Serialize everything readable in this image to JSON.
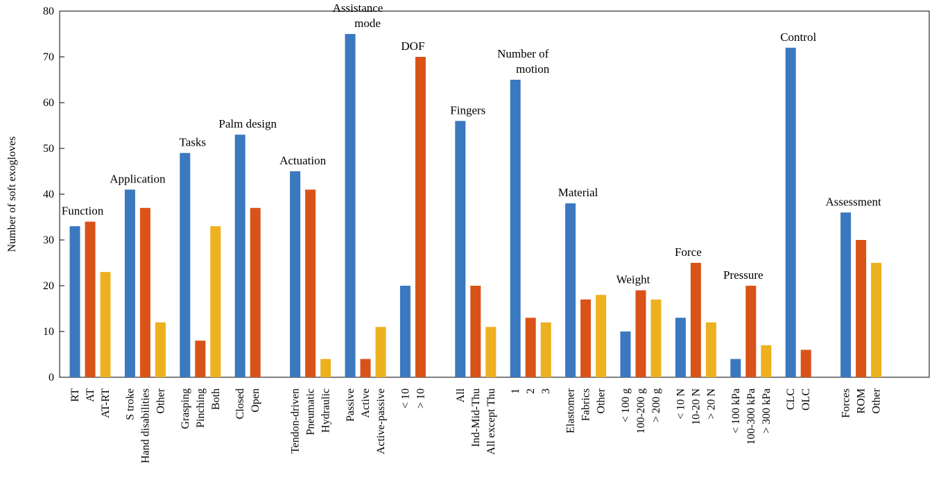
{
  "chart_data": {
    "type": "bar",
    "ylabel": "Number of soft exogloves",
    "ylim": [
      0,
      80
    ],
    "yticks": [
      0,
      10,
      20,
      30,
      40,
      50,
      60,
      70,
      80
    ],
    "colors": [
      "#3a78bf",
      "#d95319",
      "#edb120"
    ],
    "grid": false,
    "groups": [
      {
        "label": "Function",
        "bars": [
          {
            "cat": "RT",
            "value": 33
          },
          {
            "cat": "AT",
            "value": 34
          },
          {
            "cat": "AT-RT",
            "value": 23
          }
        ]
      },
      {
        "label": "Application",
        "bars": [
          {
            "cat": "S troke",
            "value": 41
          },
          {
            "cat": "Hand disabilities",
            "value": 37
          },
          {
            "cat": "Other",
            "value": 12
          }
        ]
      },
      {
        "label": "Tasks",
        "bars": [
          {
            "cat": "Grasping",
            "value": 49
          },
          {
            "cat": "Pinching",
            "value": 8
          },
          {
            "cat": "Both",
            "value": 33
          }
        ]
      },
      {
        "label": "Palm design",
        "bars": [
          {
            "cat": "Closed",
            "value": 53
          },
          {
            "cat": "Open",
            "value": 37
          }
        ]
      },
      {
        "label": "Actuation",
        "bars": [
          {
            "cat": "Tendon-driven",
            "value": 45
          },
          {
            "cat": "Pneumatic",
            "value": 41
          },
          {
            "cat": "Hydraulic",
            "value": 4
          }
        ]
      },
      {
        "label": "Assistance mode",
        "bars": [
          {
            "cat": "Passive",
            "value": 75
          },
          {
            "cat": "Active",
            "value": 4
          },
          {
            "cat": "Active-passive",
            "value": 11
          }
        ]
      },
      {
        "label": "DOF",
        "bars": [
          {
            "cat": "< 10",
            "value": 20
          },
          {
            "cat": "> 10",
            "value": 70
          }
        ]
      },
      {
        "label": "Fingers",
        "bars": [
          {
            "cat": "All",
            "value": 56
          },
          {
            "cat": "Ind-Mid-Thu",
            "value": 20
          },
          {
            "cat": "All except Thu",
            "value": 11
          }
        ]
      },
      {
        "label": "Number of motion",
        "bars": [
          {
            "cat": "1",
            "value": 65
          },
          {
            "cat": "2",
            "value": 13
          },
          {
            "cat": "3",
            "value": 12
          }
        ]
      },
      {
        "label": "Material",
        "bars": [
          {
            "cat": "Elastomer",
            "value": 38
          },
          {
            "cat": "Fabrics",
            "value": 17
          },
          {
            "cat": "Other",
            "value": 18
          }
        ]
      },
      {
        "label": "Weight",
        "bars": [
          {
            "cat": "< 100 g",
            "value": 10
          },
          {
            "cat": "100-200 g",
            "value": 19
          },
          {
            "cat": "> 200 g",
            "value": 17
          }
        ]
      },
      {
        "label": "Force",
        "bars": [
          {
            "cat": "< 10 N",
            "value": 13
          },
          {
            "cat": "10-20 N",
            "value": 25
          },
          {
            "cat": "> 20 N",
            "value": 12
          }
        ]
      },
      {
        "label": "Pressure",
        "bars": [
          {
            "cat": "< 100 kPa",
            "value": 4
          },
          {
            "cat": "100-300 kPa",
            "value": 20
          },
          {
            "cat": "> 300 kPa",
            "value": 7
          }
        ]
      },
      {
        "label": "Control",
        "bars": [
          {
            "cat": "CLC",
            "value": 72
          },
          {
            "cat": "OLC",
            "value": 6
          }
        ]
      },
      {
        "label": "Assessment",
        "bars": [
          {
            "cat": "Forces",
            "value": 36
          },
          {
            "cat": "ROM",
            "value": 30
          },
          {
            "cat": "Other",
            "value": 25
          }
        ]
      }
    ]
  }
}
